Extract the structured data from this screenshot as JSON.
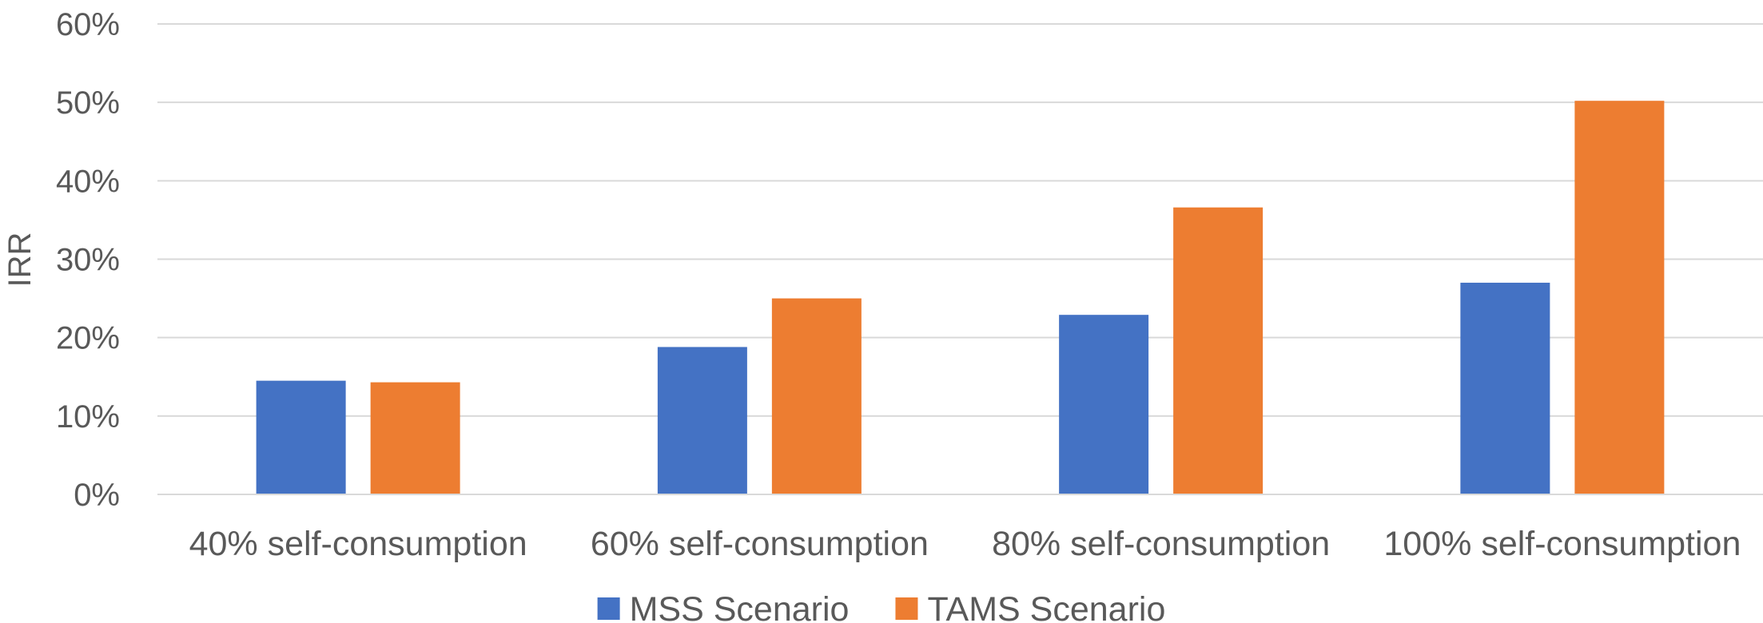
{
  "chart_data": {
    "type": "bar",
    "title": "",
    "xlabel": "",
    "ylabel": "IRR",
    "ylim": [
      0,
      0.6
    ],
    "yticks": [
      0,
      0.1,
      0.2,
      0.3,
      0.4,
      0.5,
      0.6
    ],
    "ytick_labels": [
      "0%",
      "10%",
      "20%",
      "30%",
      "40%",
      "50%",
      "60%"
    ],
    "grid": true,
    "legend_position": "bottom",
    "categories": [
      "40% self-consumption",
      "60% self-consumption",
      "80% self-consumption",
      "100% self-consumption"
    ],
    "series": [
      {
        "name": "MSS Scenario",
        "color": "#4472C4",
        "values": [
          0.145,
          0.188,
          0.229,
          0.27
        ]
      },
      {
        "name": "TAMS Scenario",
        "color": "#ED7D31",
        "values": [
          0.143,
          0.25,
          0.366,
          0.502
        ]
      }
    ]
  }
}
